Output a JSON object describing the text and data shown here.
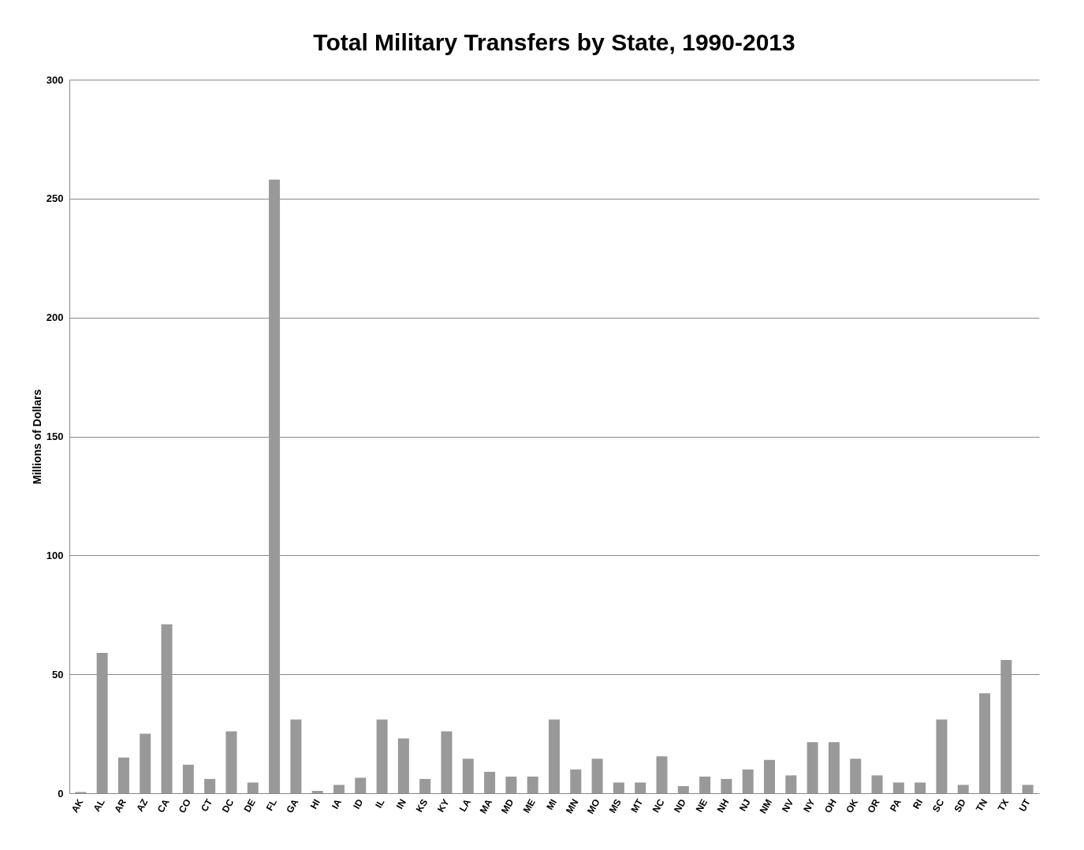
{
  "chart_data": {
    "type": "bar",
    "title": "Total Military Transfers by State, 1990-2013",
    "ylabel": "Millions of Dollars",
    "categories": [
      "AK",
      "AL",
      "AR",
      "AZ",
      "CA",
      "CO",
      "CT",
      "DC",
      "DE",
      "FL",
      "GA",
      "HI",
      "IA",
      "ID",
      "IL",
      "IN",
      "KS",
      "KY",
      "LA",
      "MA",
      "MD",
      "ME",
      "MI",
      "MN",
      "MO",
      "MS",
      "MT",
      "NC",
      "ND",
      "NE",
      "NH",
      "NJ",
      "NM",
      "NV",
      "NY",
      "OH",
      "OK",
      "OR",
      "PA",
      "RI",
      "SC",
      "SD",
      "TN",
      "TX",
      "UT"
    ],
    "values": [
      0.5,
      59,
      15,
      25,
      71,
      12,
      6,
      26,
      4.5,
      258,
      31,
      1,
      3.5,
      6.5,
      31,
      23,
      6,
      26,
      14.5,
      9,
      7,
      7,
      31,
      10,
      14.5,
      4.5,
      4.5,
      15.5,
      3,
      7,
      6,
      10,
      14,
      7.5,
      21.5,
      21.5,
      14.5,
      7.5,
      4.5,
      4.5,
      31,
      3.5,
      42,
      56,
      3.5
    ],
    "color": "#999999",
    "ylim": [
      0,
      300
    ],
    "yticks": [
      0,
      50,
      100,
      150,
      200,
      250,
      300
    ],
    "grid": "y"
  }
}
